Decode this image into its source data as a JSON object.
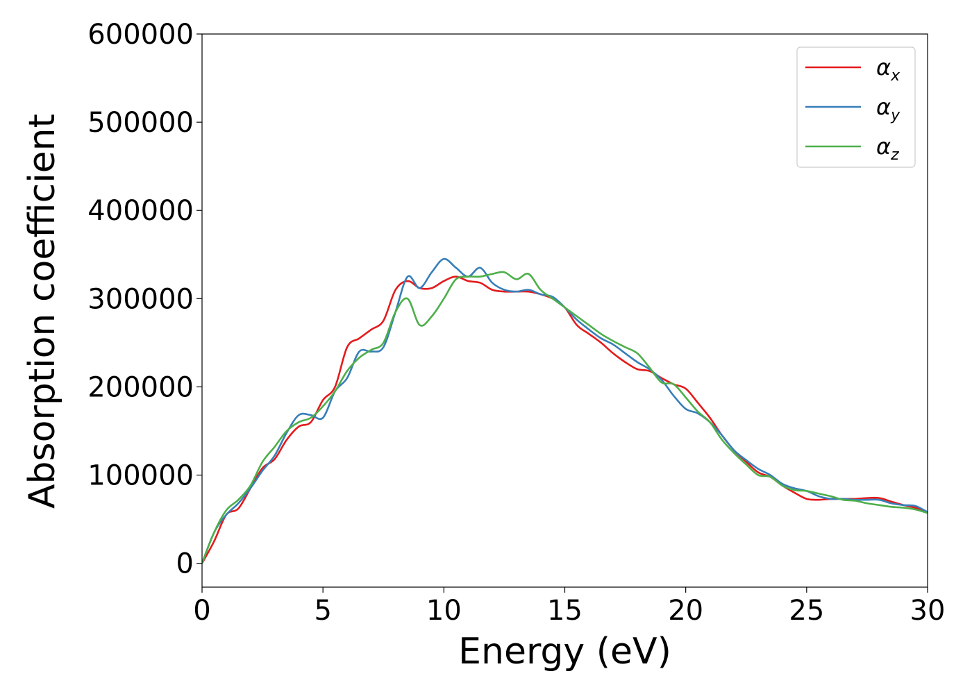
{
  "chart_data": {
    "type": "line",
    "title": "",
    "xlabel": "Energy (eV)",
    "ylabel": "Absorption coefficient",
    "xlim": [
      0,
      30
    ],
    "ylim": [
      -27000,
      600000
    ],
    "x_ticks": [
      0,
      5,
      10,
      15,
      20,
      25,
      30
    ],
    "y_ticks": [
      0,
      100000,
      200000,
      300000,
      400000,
      500000,
      600000
    ],
    "grid": false,
    "legend_position": "top-right",
    "series": [
      {
        "name": "α",
        "name_subscript": "x",
        "color": "#e41a1c",
        "x": [
          0,
          0.5,
          1,
          1.5,
          2,
          2.5,
          3,
          3.5,
          4,
          4.5,
          5,
          5.5,
          6,
          6.5,
          7,
          7.5,
          8,
          8.5,
          9,
          9.5,
          10,
          10.5,
          11,
          11.5,
          12,
          12.5,
          13,
          13.5,
          14,
          14.5,
          15,
          15.5,
          16,
          16.5,
          17,
          17.5,
          18,
          18.5,
          19,
          19.5,
          20,
          20.5,
          21,
          21.5,
          22,
          22.5,
          23,
          23.5,
          24,
          24.5,
          25,
          25.5,
          26,
          26.5,
          27,
          27.5,
          28,
          28.5,
          29,
          29.5,
          30
        ],
        "y": [
          0,
          25000,
          55000,
          62000,
          85000,
          108000,
          118000,
          140000,
          155000,
          160000,
          185000,
          200000,
          245000,
          255000,
          265000,
          275000,
          310000,
          320000,
          312000,
          312000,
          320000,
          325000,
          320000,
          318000,
          310000,
          308000,
          308000,
          308000,
          305000,
          300000,
          290000,
          270000,
          260000,
          250000,
          238000,
          228000,
          220000,
          218000,
          210000,
          203000,
          198000,
          182000,
          165000,
          145000,
          128000,
          115000,
          103000,
          98000,
          88000,
          80000,
          73000,
          72000,
          73000,
          73000,
          73000,
          74000,
          74000,
          70000,
          66000,
          63000,
          58000
        ]
      },
      {
        "name": "α",
        "name_subscript": "y",
        "color": "#377eb8",
        "x": [
          0,
          0.5,
          1,
          1.5,
          2,
          2.5,
          3,
          3.5,
          4,
          4.5,
          5,
          5.5,
          6,
          6.5,
          7,
          7.5,
          8,
          8.5,
          9,
          9.5,
          10,
          10.5,
          11,
          11.5,
          12,
          12.5,
          13,
          13.5,
          14,
          14.5,
          15,
          15.5,
          16,
          16.5,
          17,
          17.5,
          18,
          18.5,
          19,
          19.5,
          20,
          20.5,
          21,
          21.5,
          22,
          22.5,
          23,
          23.5,
          24,
          24.5,
          25,
          25.5,
          26,
          26.5,
          27,
          27.5,
          28,
          28.5,
          29,
          29.5,
          30
        ],
        "y": [
          0,
          35000,
          55000,
          68000,
          85000,
          105000,
          122000,
          148000,
          168000,
          168000,
          165000,
          195000,
          210000,
          240000,
          240000,
          245000,
          285000,
          325000,
          312000,
          330000,
          345000,
          335000,
          325000,
          335000,
          318000,
          310000,
          308000,
          310000,
          305000,
          302000,
          290000,
          276000,
          265000,
          255000,
          248000,
          238000,
          228000,
          220000,
          208000,
          190000,
          175000,
          170000,
          160000,
          145000,
          128000,
          117000,
          107000,
          100000,
          90000,
          85000,
          82000,
          76000,
          73000,
          73000,
          72000,
          72000,
          72000,
          68000,
          66000,
          65000,
          58000
        ]
      },
      {
        "name": "α",
        "name_subscript": "z",
        "color": "#4daf4a",
        "x": [
          0,
          0.5,
          1,
          1.5,
          2,
          2.5,
          3,
          3.5,
          4,
          4.5,
          5,
          5.5,
          6,
          6.5,
          7,
          7.5,
          8,
          8.5,
          9,
          9.5,
          10,
          10.5,
          11,
          11.5,
          12,
          12.5,
          13,
          13.5,
          14,
          14.5,
          15,
          15.5,
          16,
          16.5,
          17,
          17.5,
          18,
          18.5,
          19,
          19.5,
          20,
          20.5,
          21,
          21.5,
          22,
          22.5,
          23,
          23.5,
          24,
          24.5,
          25,
          25.5,
          26,
          26.5,
          27,
          27.5,
          28,
          28.5,
          29,
          29.5,
          30
        ],
        "y": [
          0,
          35000,
          60000,
          72000,
          88000,
          115000,
          132000,
          150000,
          160000,
          165000,
          178000,
          195000,
          218000,
          233000,
          242000,
          250000,
          285000,
          300000,
          270000,
          280000,
          300000,
          322000,
          325000,
          325000,
          328000,
          330000,
          322000,
          328000,
          310000,
          300000,
          290000,
          280000,
          270000,
          260000,
          252000,
          245000,
          238000,
          222000,
          205000,
          203000,
          188000,
          172000,
          160000,
          140000,
          125000,
          112000,
          100000,
          98000,
          88000,
          83000,
          82000,
          79000,
          76000,
          72000,
          71000,
          68000,
          66000,
          64000,
          63000,
          61000,
          57000
        ]
      }
    ]
  }
}
